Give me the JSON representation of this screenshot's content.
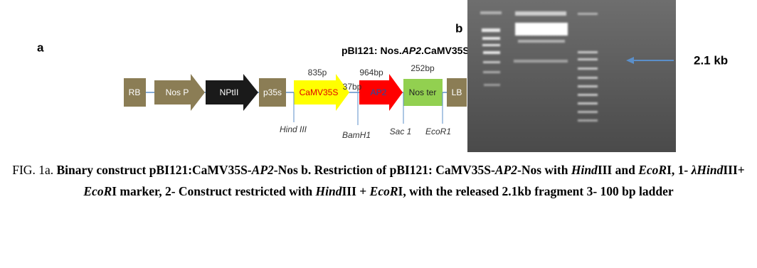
{
  "panel_a": {
    "label": "a",
    "title": [
      "pBI121: Nos.",
      "AP2",
      ".CaMV35S"
    ],
    "elements": [
      "RB",
      "Nos P",
      "NPtII",
      "p35s",
      "CaMV35S",
      "AP2",
      "Nos ter",
      "LB"
    ],
    "sizes": [
      "835p",
      "37bp",
      "964bp",
      "252bp"
    ],
    "sites": [
      "Hind III",
      "BamH1",
      "Sac 1",
      "EcoR1"
    ]
  },
  "panel_b": {
    "label": "b",
    "marker": "2.1 kb"
  },
  "caption": [
    "FIG. 1a. ",
    "Binary construct pBI121:CaMV35S-",
    "AP2",
    "-Nos  b. Restriction of  pBI121: CaMV35S-",
    "AP2",
    "-Nos with ",
    "Hind",
    "III and ",
    "EcoR",
    "I, 1- ",
    "λHind",
    "III+ ",
    "EcoR",
    "I marker, 2- Construct restricted with ",
    "Hind",
    "III + ",
    "EcoR",
    "I, with the released 2.1kb fragment 3- 100 bp ladder"
  ]
}
